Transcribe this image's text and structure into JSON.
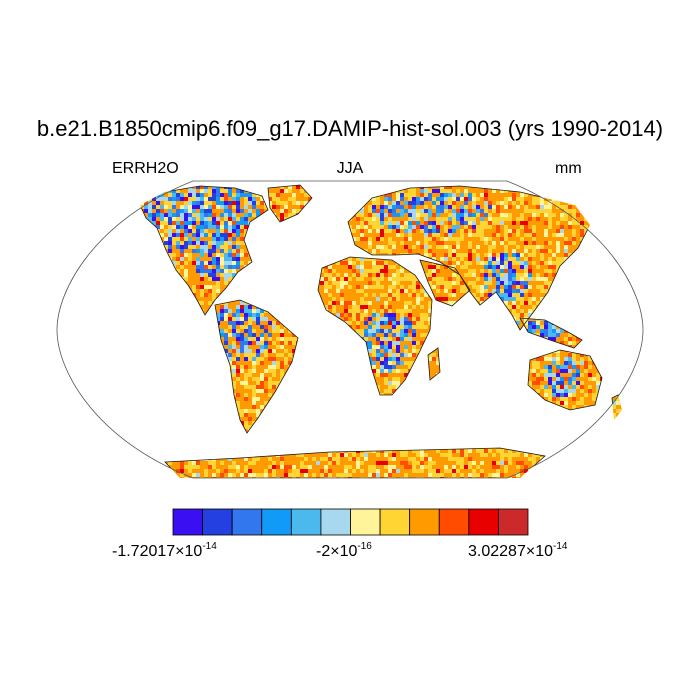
{
  "title": "b.e21.B1850cmip6.f09_g17.DAMIP-hist-sol.003 (yrs 1990-2014)",
  "variable": "ERRH2O",
  "season": "JJA",
  "units": "mm",
  "projection": "Robinson (global)",
  "colorbar": {
    "colors": [
      "#3a10f2",
      "#2440e0",
      "#3377ee",
      "#119af7",
      "#4cb9ee",
      "#a8d8f0",
      "#fff49a",
      "#ffd534",
      "#ff9a00",
      "#ff4c00",
      "#e80000",
      "#cc2a2a"
    ],
    "min_label": {
      "mantissa": "-1.72017",
      "times": "×10",
      "exp": "-14"
    },
    "mid_label": {
      "mantissa": "-2",
      "times": "×10",
      "exp": "-16"
    },
    "max_label": {
      "mantissa": "3.02287",
      "times": "×10",
      "exp": "-14"
    }
  },
  "field_description": "Gridded land-only field; mostly orange/yellow (near-zero positive) with blue/purple negative patches in Canada, eastern US, Amazon, central Africa, Siberia and SE Asia"
}
